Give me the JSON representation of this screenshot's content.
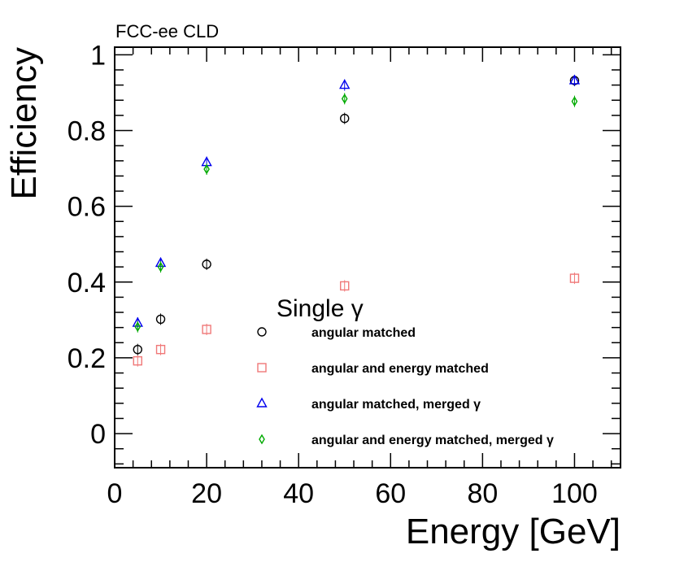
{
  "chart_data": {
    "type": "scatter",
    "experiment_tag": "FCC-ee CLD",
    "xlabel": "Energy [GeV]",
    "ylabel": "Efficiency",
    "xlim": [
      0,
      110
    ],
    "ylim": [
      -0.09,
      1.02
    ],
    "x_ticks": [
      "0",
      "20",
      "40",
      "60",
      "80",
      "100"
    ],
    "y_ticks": [
      "0",
      "0.2",
      "0.4",
      "0.6",
      "0.8",
      "1"
    ],
    "x_tick_values": [
      0,
      20,
      40,
      60,
      80,
      100
    ],
    "y_tick_values": [
      0,
      0.2,
      0.4,
      0.6,
      0.8,
      1.0
    ],
    "legend_title": "Single γ",
    "legend_position": "bottom-right",
    "series": [
      {
        "name": "angular matched",
        "marker": "circle",
        "color": "#000000",
        "x": [
          5,
          10,
          20,
          50,
          100
        ],
        "y": [
          0.222,
          0.302,
          0.447,
          0.832,
          0.932
        ]
      },
      {
        "name": "angular and energy matched",
        "marker": "square",
        "color": "#f07878",
        "x": [
          5,
          10,
          20,
          50,
          100
        ],
        "y": [
          0.192,
          0.222,
          0.275,
          0.39,
          0.41
        ]
      },
      {
        "name": "angular matched, merged γ",
        "marker": "triangle",
        "color": "#0000ee",
        "x": [
          5,
          10,
          20,
          50,
          100
        ],
        "y": [
          0.292,
          0.45,
          0.716,
          0.92,
          0.932
        ]
      },
      {
        "name": "angular and energy matched, merged γ",
        "marker": "diamond",
        "color": "#00aa00",
        "x": [
          5,
          10,
          20,
          50,
          100
        ],
        "y": [
          0.282,
          0.44,
          0.698,
          0.884,
          0.877
        ]
      }
    ]
  }
}
